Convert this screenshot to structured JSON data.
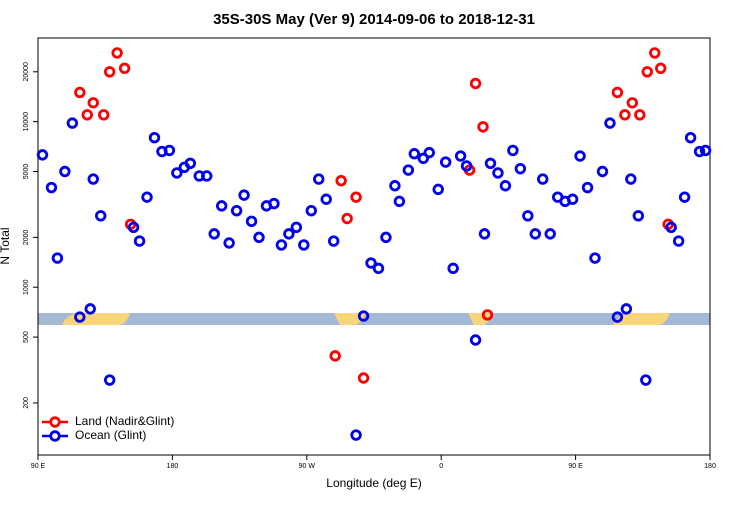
{
  "chart_data": {
    "type": "scatter",
    "title": "35S-30S May (Ver 9)   2014-09-06 to 2018-12-31",
    "x_label": "Longitude (deg E)",
    "y_label": "N Total",
    "xlim": [
      90,
      540
    ],
    "xticks": [
      {
        "value": 90,
        "label": "90 E"
      },
      180,
      {
        "value": 270,
        "label": "90 W"
      },
      {
        "value": 360,
        "label": "0"
      },
      {
        "value": 450,
        "label": "90 E"
      },
      {
        "value": 540,
        "label": "180"
      }
    ],
    "ylim": [
      97,
      32000
    ],
    "log_y": true,
    "yticks": [
      200,
      500,
      1000,
      2000,
      5000,
      10000,
      20000
    ],
    "legend": "bottom-left",
    "series": [
      {
        "name": "Land (Nadir&Glint)",
        "color": "#ff0000",
        "x": [
          118,
          123,
          127,
          134,
          138,
          143,
          148,
          152,
          289,
          293,
          297,
          303,
          308,
          379,
          383,
          388,
          391,
          478,
          483,
          488,
          493,
          498,
          503,
          507,
          512
        ],
        "values": [
          15000,
          11000,
          13000,
          11000,
          20000,
          26000,
          21000,
          2400,
          385,
          4400,
          2600,
          3500,
          283,
          5100,
          17000,
          9300,
          680,
          15000,
          11000,
          13000,
          11000,
          20000,
          26000,
          21000,
          2400
        ]
      },
      {
        "name": "Ocean (Glint)",
        "color": "#0000ee",
        "x": [
          93,
          99,
          103,
          108,
          113,
          118,
          125,
          127,
          132,
          138,
          154,
          158,
          163,
          168,
          173,
          178,
          183,
          188,
          192,
          198,
          203,
          208,
          213,
          218,
          223,
          228,
          233,
          238,
          243,
          248,
          253,
          258,
          263,
          268,
          273,
          278,
          283,
          288,
          303,
          308,
          313,
          318,
          323,
          329,
          332,
          338,
          342,
          348,
          352,
          358,
          363,
          368,
          373,
          377,
          383,
          389,
          393,
          398,
          403,
          408,
          413,
          418,
          423,
          428,
          433,
          438,
          443,
          448,
          453,
          458,
          463,
          468,
          473,
          478,
          484,
          487,
          492,
          497,
          514,
          519,
          523,
          527,
          533,
          537
        ],
        "values": [
          6300,
          4000,
          1500,
          5000,
          9800,
          660,
          740,
          4500,
          2700,
          275,
          2300,
          1900,
          3500,
          8000,
          6600,
          6700,
          4900,
          5300,
          5600,
          4700,
          4700,
          2100,
          3100,
          1850,
          2900,
          3600,
          2500,
          2000,
          3100,
          3200,
          1800,
          2100,
          2300,
          1800,
          2900,
          4500,
          3400,
          1900,
          128,
          670,
          1400,
          1300,
          2000,
          4100,
          3300,
          5100,
          6400,
          6000,
          6500,
          3900,
          5700,
          1300,
          6200,
          5400,
          480,
          2100,
          5600,
          4900,
          4100,
          6700,
          5200,
          2700,
          2100,
          4500,
          2100,
          3500,
          3300,
          3400,
          6200,
          4000,
          1500,
          5000,
          9800,
          660,
          740,
          4500,
          2700,
          275,
          2300,
          1900,
          3500,
          8000,
          6600,
          6700
        ]
      }
    ]
  }
}
